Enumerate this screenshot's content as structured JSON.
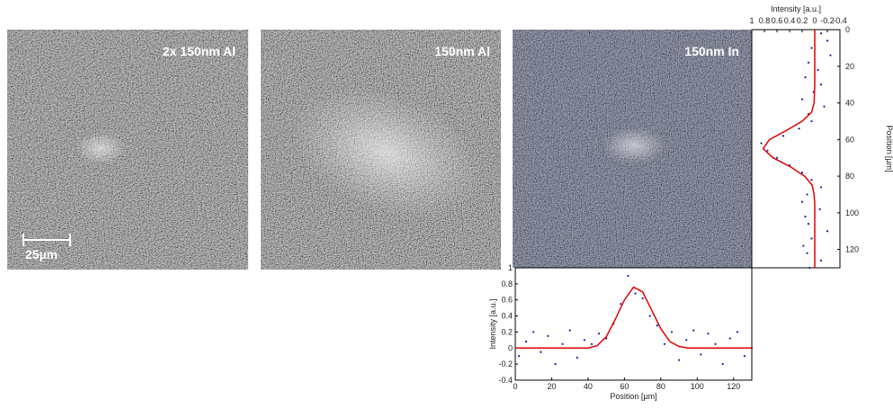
{
  "panels": [
    {
      "label": "2x 150nm Al",
      "scale_bar": "25µm"
    },
    {
      "label": "150nm Al"
    },
    {
      "label": "150nm In"
    }
  ],
  "chart_data": [
    {
      "type": "scatter",
      "orientation": "horizontal",
      "xlabel": "Position [µm]",
      "ylabel": "Intensity [a.u.]",
      "xlim": [
        0,
        130
      ],
      "ylim": [
        -0.4,
        1
      ],
      "xticks": [
        0,
        20,
        40,
        60,
        80,
        100,
        120
      ],
      "yticks": [
        -0.4,
        -0.2,
        0,
        0.2,
        0.4,
        0.6,
        0.8,
        1
      ],
      "series": [
        {
          "kind": "markers",
          "color": "#1a1aa0",
          "x": [
            2,
            6,
            10,
            14,
            18,
            22,
            26,
            30,
            34,
            38,
            42,
            46,
            50,
            54,
            58,
            62,
            66,
            70,
            74,
            78,
            82,
            86,
            90,
            94,
            98,
            102,
            106,
            110,
            114,
            118,
            122,
            126,
            130
          ],
          "values": [
            -0.1,
            0.08,
            0.2,
            -0.05,
            0.15,
            -0.2,
            0.05,
            0.22,
            -0.12,
            0.1,
            0.05,
            0.18,
            0.12,
            0.3,
            0.55,
            0.9,
            0.68,
            0.62,
            0.4,
            0.28,
            0.05,
            0.2,
            -0.15,
            0.1,
            0.22,
            -0.08,
            0.18,
            0.05,
            -0.2,
            0.12,
            0.2,
            -0.1,
            0
          ]
        },
        {
          "kind": "line",
          "color": "#e00000",
          "x": [
            0,
            10,
            20,
            30,
            40,
            45,
            50,
            55,
            60,
            65,
            70,
            75,
            80,
            85,
            90,
            95,
            100,
            110,
            120,
            130
          ],
          "values": [
            0,
            0,
            0,
            0,
            0,
            0.03,
            0.14,
            0.36,
            0.6,
            0.76,
            0.7,
            0.47,
            0.24,
            0.08,
            0.02,
            0,
            0,
            0,
            0,
            0
          ]
        }
      ]
    },
    {
      "type": "scatter",
      "orientation": "vertical",
      "xlabel": "Position [µm]",
      "ylabel": "Intensity [a.u.]",
      "xlim": [
        0,
        130
      ],
      "ylim": [
        1,
        -0.4
      ],
      "xticks": [
        0,
        20,
        40,
        60,
        80,
        100,
        120
      ],
      "yticks": [
        1,
        0.8,
        0.6,
        0.4,
        0.2,
        0,
        -0.2,
        -0.4
      ],
      "series": [
        {
          "kind": "markers",
          "color": "#1a1aa0",
          "x": [
            2,
            6,
            10,
            14,
            18,
            22,
            26,
            30,
            34,
            38,
            42,
            46,
            50,
            54,
            58,
            62,
            66,
            70,
            74,
            78,
            82,
            86,
            90,
            94,
            98,
            102,
            106,
            110,
            114,
            118,
            122,
            126,
            130
          ],
          "values": [
            -0.1,
            -0.2,
            0.05,
            -0.25,
            0.1,
            -0.05,
            0.15,
            -0.1,
            0.02,
            0.2,
            -0.15,
            0.1,
            0.05,
            0.25,
            0.5,
            0.85,
            0.75,
            0.6,
            0.4,
            0.2,
            0.05,
            -0.1,
            0.12,
            0.2,
            -0.08,
            0.15,
            0.1,
            -0.2,
            0.05,
            0.18,
            0.12,
            -0.1,
            0.08
          ]
        },
        {
          "kind": "line",
          "color": "#e00000",
          "x": [
            0,
            10,
            20,
            30,
            40,
            45,
            50,
            55,
            60,
            65,
            70,
            75,
            80,
            85,
            90,
            95,
            100,
            110,
            120,
            130
          ],
          "values": [
            0,
            0,
            0,
            0,
            0.01,
            0.05,
            0.2,
            0.45,
            0.72,
            0.82,
            0.66,
            0.38,
            0.16,
            0.04,
            0.01,
            0,
            0,
            0,
            0,
            0
          ]
        }
      ]
    }
  ]
}
